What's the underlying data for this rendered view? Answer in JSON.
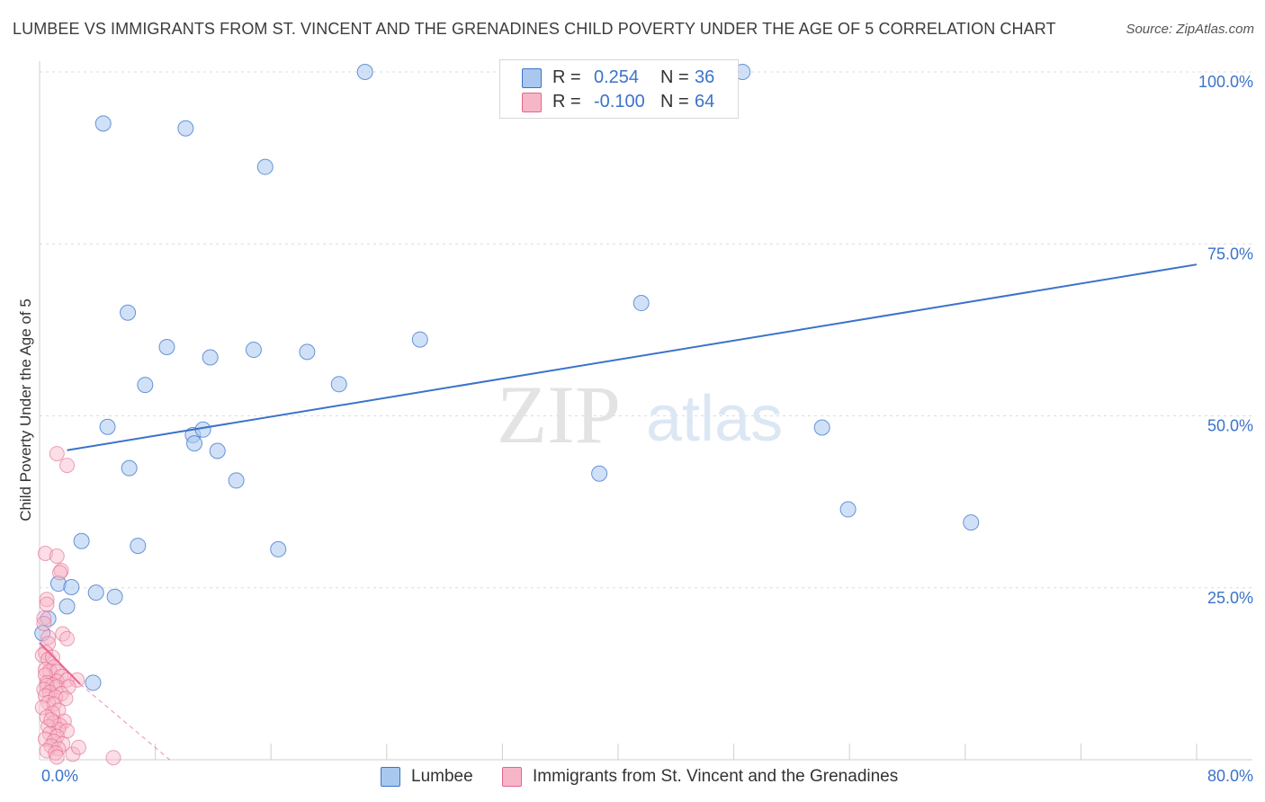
{
  "title": "LUMBEE VS IMMIGRANTS FROM ST. VINCENT AND THE GRENADINES CHILD POVERTY UNDER THE AGE OF 5 CORRELATION CHART",
  "source": "Source: ZipAtlas.com",
  "watermark": {
    "zip": "ZIP",
    "atlas": "atlas"
  },
  "legend": {
    "r_label": "R =",
    "n_label": "N =",
    "rows": [
      {
        "r": "0.254",
        "n": "36",
        "color": "#a9c8f0"
      },
      {
        "r": "-0.100",
        "n": "64",
        "color": "#f7b6c8"
      }
    ]
  },
  "bottom_legend": {
    "lumbee": "Lumbee",
    "immigrants": "Immigrants from St. Vincent and the Grenadines"
  },
  "chart_data": {
    "type": "scatter",
    "xlabel": "",
    "ylabel": "Child Poverty Under the Age of 5",
    "xlim": [
      0,
      80
    ],
    "ylim": [
      0,
      100
    ],
    "x_tick_labels": [
      "0.0%",
      "80.0%"
    ],
    "y_tick_labels": [
      "25.0%",
      "50.0%",
      "75.0%",
      "100.0%"
    ],
    "y_ticks": [
      25,
      50,
      75,
      100
    ],
    "grid": true,
    "legend_position": "top-center",
    "colors": {
      "lumbee": "#3b73c9",
      "lumbee_fill": "#a9c8f0",
      "immigrants": "#e5658e",
      "immigrants_fill": "#f7b6c8"
    },
    "series": [
      {
        "name": "Lumbee",
        "r": 0.254,
        "n": 36,
        "trend": {
          "x": [
            1.9,
            80
          ],
          "y": [
            45,
            72
          ]
        },
        "points": [
          [
            22.5,
            100
          ],
          [
            48.6,
            100
          ],
          [
            4.4,
            92.5
          ],
          [
            10.1,
            91.8
          ],
          [
            15.6,
            86.2
          ],
          [
            6.1,
            65
          ],
          [
            8.8,
            60
          ],
          [
            14.8,
            59.6
          ],
          [
            11.8,
            58.5
          ],
          [
            18.5,
            59.3
          ],
          [
            26.3,
            61.1
          ],
          [
            41.6,
            66.4
          ],
          [
            7.3,
            54.5
          ],
          [
            20.7,
            54.6
          ],
          [
            4.7,
            48.4
          ],
          [
            10.6,
            47.2
          ],
          [
            11.3,
            48
          ],
          [
            10.7,
            46
          ],
          [
            12.3,
            44.9
          ],
          [
            6.2,
            42.4
          ],
          [
            13.6,
            40.6
          ],
          [
            38.7,
            41.6
          ],
          [
            54.1,
            48.3
          ],
          [
            55.9,
            36.4
          ],
          [
            64.4,
            34.5
          ],
          [
            2.9,
            31.8
          ],
          [
            6.8,
            31.1
          ],
          [
            16.5,
            30.6
          ],
          [
            1.3,
            25.6
          ],
          [
            2.2,
            25.1
          ],
          [
            3.9,
            24.3
          ],
          [
            5.2,
            23.7
          ],
          [
            1.9,
            22.3
          ],
          [
            0.6,
            20.5
          ],
          [
            0.2,
            18.4
          ],
          [
            3.7,
            11.2
          ]
        ]
      },
      {
        "name": "Immigrants from St. Vincent and the Grenadines",
        "r": -0.1,
        "n": 64,
        "trend": {
          "x": [
            0,
            2.8,
            9
          ],
          "y": [
            17,
            11,
            0
          ]
        },
        "points": [
          [
            1.2,
            44.5
          ],
          [
            1.9,
            42.8
          ],
          [
            0.4,
            30
          ],
          [
            1.2,
            29.6
          ],
          [
            1.5,
            27.5
          ],
          [
            1.4,
            27.2
          ],
          [
            0.5,
            23.3
          ],
          [
            0.5,
            22.6
          ],
          [
            0.3,
            20.6
          ],
          [
            0.3,
            19.8
          ],
          [
            1.6,
            18.3
          ],
          [
            1.9,
            17.6
          ],
          [
            0.6,
            17.8
          ],
          [
            0.6,
            16.9
          ],
          [
            0.4,
            15.6
          ],
          [
            0.2,
            15.2
          ],
          [
            0.6,
            14.6
          ],
          [
            0.9,
            14.9
          ],
          [
            1.0,
            13.5
          ],
          [
            0.4,
            13.1
          ],
          [
            0.7,
            12.9
          ],
          [
            1.2,
            12.8
          ],
          [
            0.4,
            12.3
          ],
          [
            1.5,
            12.1
          ],
          [
            1.2,
            11.4
          ],
          [
            0.5,
            11.2
          ],
          [
            1.9,
            11.6
          ],
          [
            2.6,
            11.6
          ],
          [
            0.9,
            10.9
          ],
          [
            0.5,
            10.8
          ],
          [
            1.2,
            10.6
          ],
          [
            2.0,
            10.6
          ],
          [
            0.3,
            10.2
          ],
          [
            0.7,
            9.8
          ],
          [
            1.5,
            9.6
          ],
          [
            0.4,
            9.3
          ],
          [
            1.1,
            9.1
          ],
          [
            1.8,
            8.9
          ],
          [
            0.6,
            8.3
          ],
          [
            1.0,
            8.1
          ],
          [
            0.2,
            7.6
          ],
          [
            1.3,
            7.2
          ],
          [
            0.9,
            6.8
          ],
          [
            0.5,
            6.2
          ],
          [
            1.7,
            5.6
          ],
          [
            1.0,
            5.4
          ],
          [
            1.4,
            5.0
          ],
          [
            0.6,
            4.8
          ],
          [
            1.3,
            4.4
          ],
          [
            1.9,
            4.2
          ],
          [
            0.7,
            3.8
          ],
          [
            1.2,
            3.4
          ],
          [
            0.4,
            3.0
          ],
          [
            1.0,
            2.7
          ],
          [
            1.6,
            2.3
          ],
          [
            0.8,
            2.0
          ],
          [
            1.3,
            1.6
          ],
          [
            0.5,
            1.3
          ],
          [
            1.1,
            1.0
          ],
          [
            2.3,
            0.8
          ],
          [
            1.2,
            0.4
          ],
          [
            2.7,
            1.8
          ],
          [
            0.8,
            5.8
          ],
          [
            5.1,
            0.3
          ]
        ]
      }
    ]
  }
}
